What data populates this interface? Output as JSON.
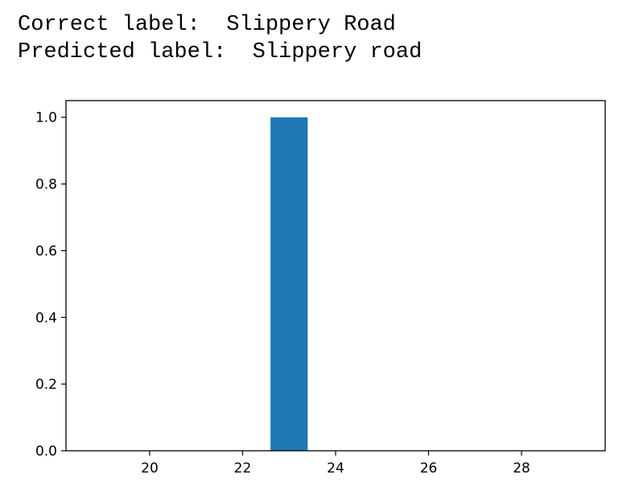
{
  "output": {
    "correct_label_prefix": "Correct label:  ",
    "correct_label_value": "Slippery Road",
    "predicted_label_prefix": "Predicted label:  ",
    "predicted_label_value": "Slippery road"
  },
  "chart_data": {
    "type": "bar",
    "x": [
      23
    ],
    "values": [
      1.0
    ],
    "bar_width": 0.8,
    "xlim": [
      18.2,
      29.8
    ],
    "ylim": [
      0,
      1.05
    ],
    "xticks": [
      20,
      22,
      24,
      26,
      28
    ],
    "yticks": [
      "0.0",
      "0.2",
      "0.4",
      "0.6",
      "0.8",
      "1.0"
    ],
    "ytick_values": [
      0.0,
      0.2,
      0.4,
      0.6,
      0.8,
      1.0
    ],
    "title": "",
    "xlabel": "",
    "ylabel": "",
    "grid": false,
    "bar_color": "#1f77b4"
  }
}
